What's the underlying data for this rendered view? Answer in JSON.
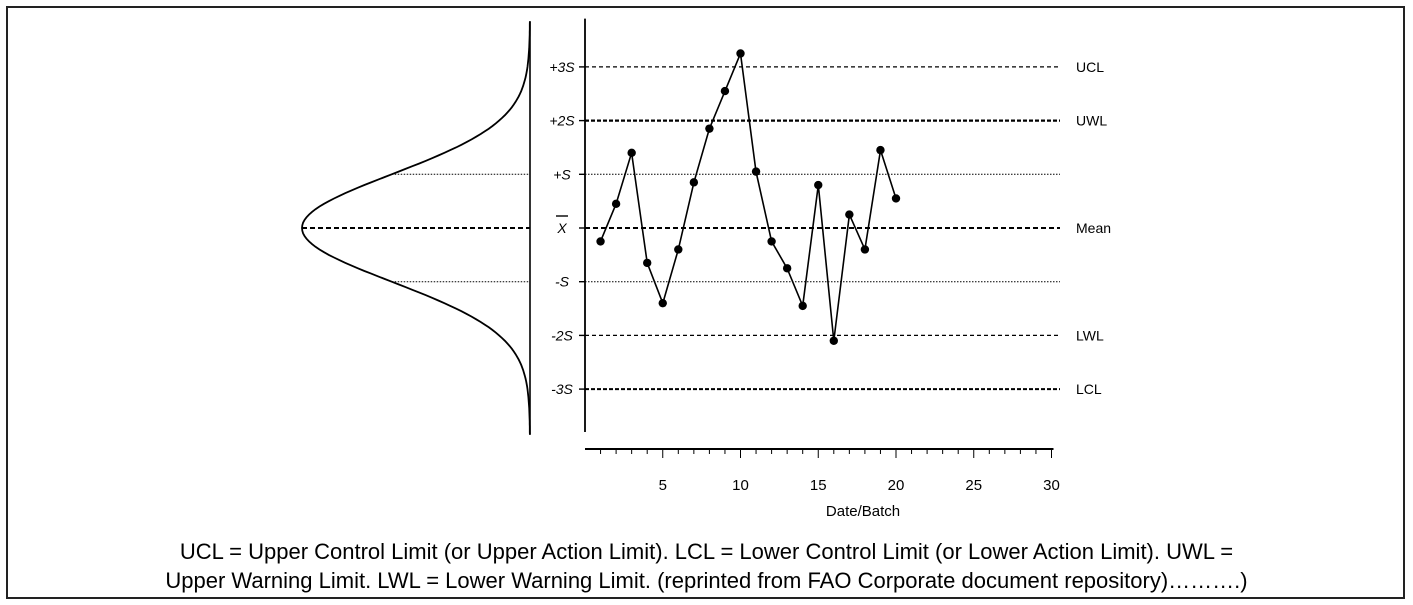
{
  "chart_data": {
    "type": "line",
    "xlabel": "Date/Batch",
    "x_ticks": [
      "5",
      "10",
      "15",
      "20",
      "25",
      "30"
    ],
    "xlim": [
      0,
      30
    ],
    "ylim": [
      -3.8,
      3.3
    ],
    "y_levels": [
      {
        "value": 3,
        "label": "+3S",
        "right_label": "UCL"
      },
      {
        "value": 2,
        "label": "+2S",
        "right_label": "UWL"
      },
      {
        "value": 1,
        "label": "+S",
        "right_label": ""
      },
      {
        "value": 0,
        "label": "X",
        "right_label": "Mean"
      },
      {
        "value": -1,
        "label": "-S",
        "right_label": ""
      },
      {
        "value": -2,
        "label": "-2S",
        "right_label": "LWL"
      },
      {
        "value": -3,
        "label": "-3S",
        "right_label": "LCL"
      }
    ],
    "series": [
      {
        "x": [
          1,
          2,
          3,
          4,
          5,
          6,
          7,
          8,
          9,
          10,
          11,
          12,
          13,
          14,
          15,
          16,
          17,
          18,
          19,
          20
        ],
        "values": [
          -0.25,
          0.45,
          1.4,
          -0.65,
          -1.4,
          -0.4,
          0.85,
          1.85,
          2.55,
          3.25,
          1.05,
          -0.25,
          -0.75,
          -1.45,
          0.8,
          -2.1,
          0.25,
          -0.4,
          1.45,
          0.55
        ]
      }
    ],
    "normal_curve": true
  },
  "caption": {
    "line1": "UCL = Upper Control Limit (or Upper Action Limit). LCL = Lower Control Limit (or Lower Action Limit). UWL =",
    "line2": "Upper Warning Limit. LWL = Lower Warning Limit. (reprinted from FAO Corporate document repository)……….)"
  }
}
